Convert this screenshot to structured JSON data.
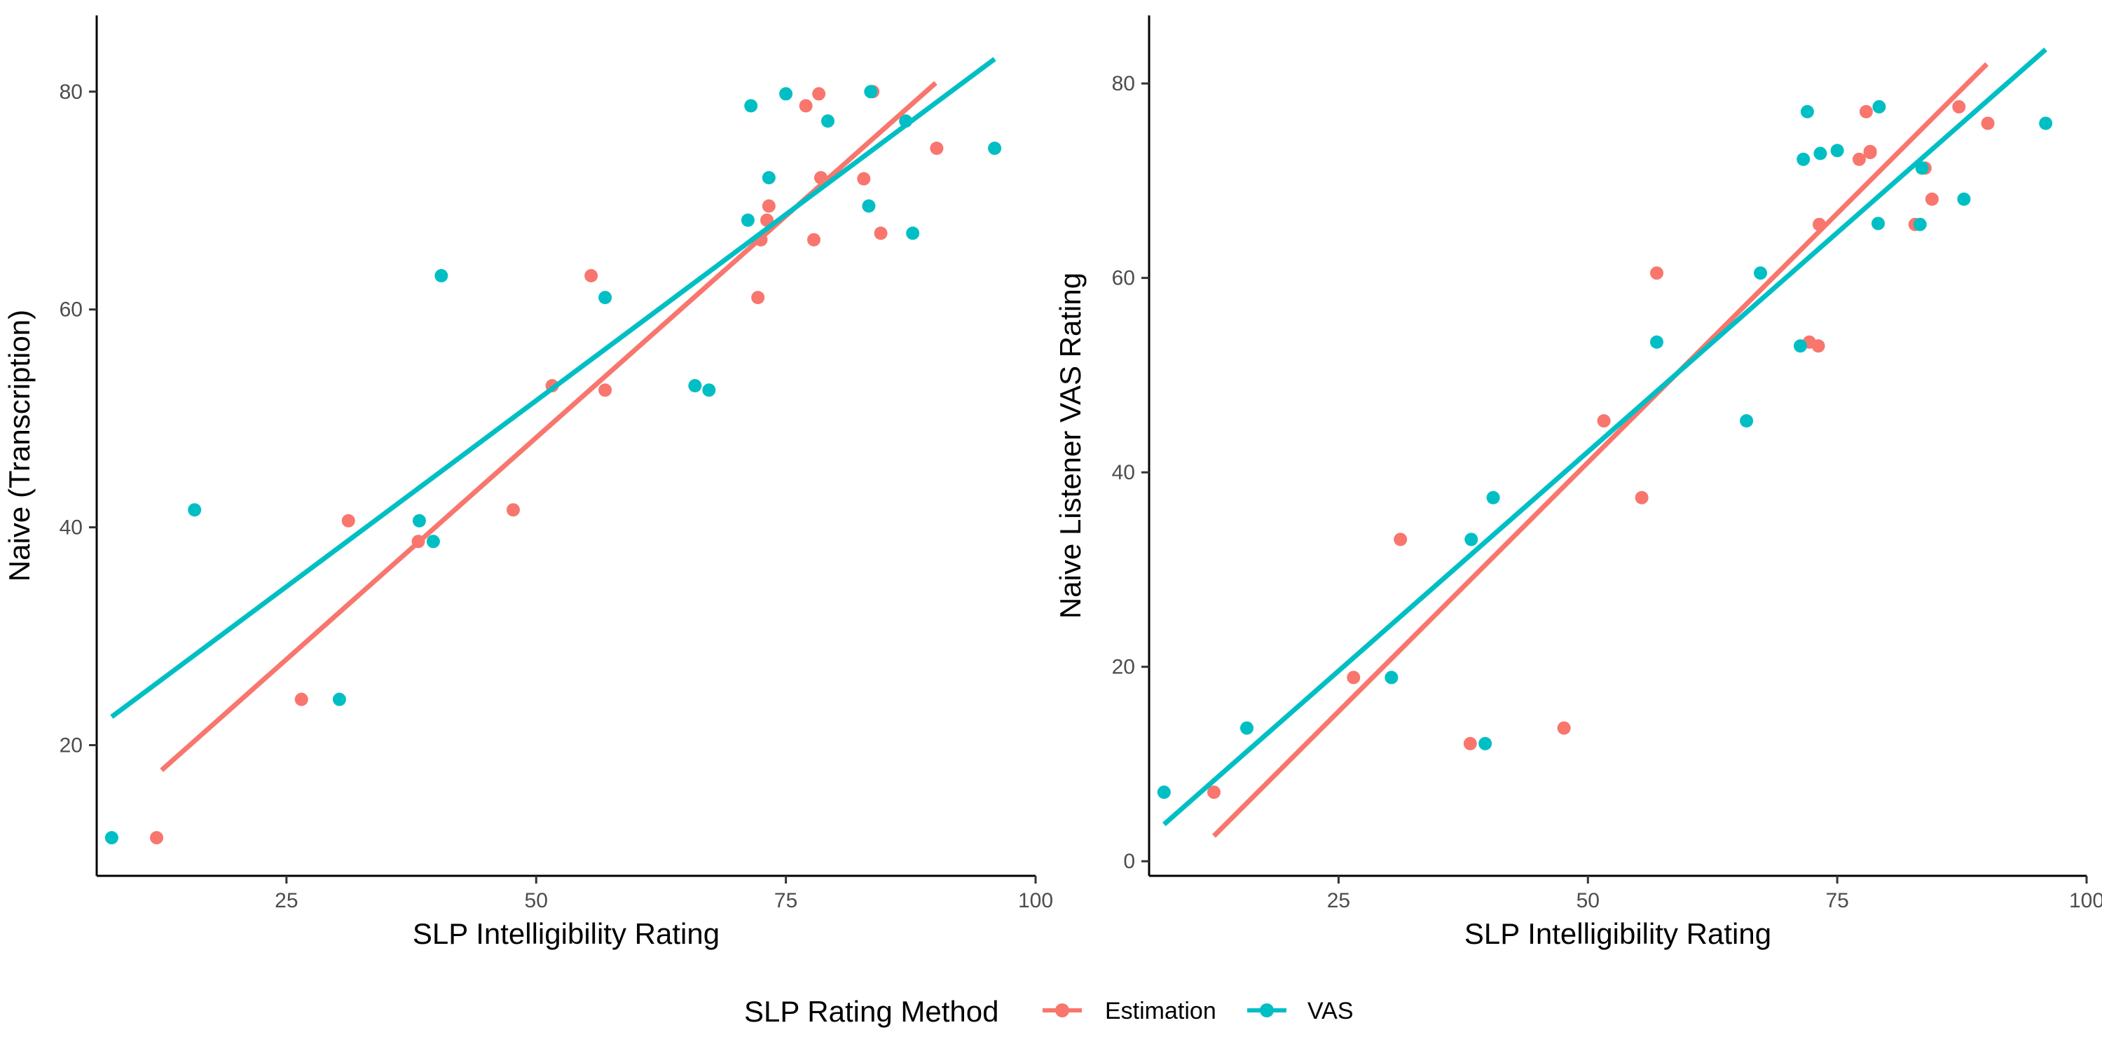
{
  "colors": {
    "estimation": "#F8766D",
    "vas": "#00BFC4",
    "axis": "#000000",
    "tick_text": "#4d4d4d"
  },
  "legend": {
    "title": "SLP Rating Method",
    "items": [
      {
        "label": "Estimation",
        "key": "estimation"
      },
      {
        "label": "VAS",
        "key": "vas"
      }
    ],
    "position": "bottom"
  },
  "chart_data": [
    {
      "type": "scatter",
      "xlabel": "SLP Intelligibility Rating",
      "ylabel": "Naive (Transcription)",
      "xlim": [
        6,
        100
      ],
      "ylim": [
        8,
        87
      ],
      "xticks": [
        25,
        50,
        75,
        100
      ],
      "yticks": [
        20,
        40,
        60,
        80
      ],
      "grid": false,
      "series": [
        {
          "key": "estimation",
          "name": "Estimation",
          "points": [
            [
              12,
              11.5
            ],
            [
              26.5,
              24.2
            ],
            [
              31.2,
              40.6
            ],
            [
              38.2,
              38.7
            ],
            [
              47.7,
              41.6
            ],
            [
              51.6,
              53
            ],
            [
              55.5,
              63.1
            ],
            [
              56.9,
              52.6
            ],
            [
              72.2,
              61.1
            ],
            [
              72.5,
              66.4
            ],
            [
              73.1,
              68.2
            ],
            [
              73.3,
              69.5
            ],
            [
              77,
              78.7
            ],
            [
              77.8,
              66.4
            ],
            [
              78.3,
              79.8
            ],
            [
              78.5,
              72.1
            ],
            [
              82.8,
              72
            ],
            [
              83.7,
              80
            ],
            [
              84.5,
              67
            ],
            [
              90.1,
              74.8
            ]
          ],
          "fit": [
            [
              12.5,
              17.7
            ],
            [
              90,
              80.8
            ]
          ]
        },
        {
          "key": "vas",
          "name": "VAS",
          "points": [
            [
              7.5,
              11.5
            ],
            [
              15.8,
              41.6
            ],
            [
              30.3,
              24.2
            ],
            [
              38.3,
              40.6
            ],
            [
              39.7,
              38.7
            ],
            [
              40.5,
              63.1
            ],
            [
              56.9,
              61.1
            ],
            [
              65.9,
              53
            ],
            [
              67.3,
              52.6
            ],
            [
              71.2,
              68.2
            ],
            [
              71.5,
              78.7
            ],
            [
              73.3,
              72.1
            ],
            [
              75,
              79.8
            ],
            [
              79.2,
              77.3
            ],
            [
              83.3,
              69.5
            ],
            [
              83.5,
              80
            ],
            [
              87,
              77.3
            ],
            [
              87.7,
              67
            ],
            [
              95.9,
              74.8
            ]
          ],
          "fit": [
            [
              7.5,
              22.6
            ],
            [
              95.9,
              83
            ]
          ]
        }
      ]
    },
    {
      "type": "scatter",
      "xlabel": "SLP Intelligibility Rating",
      "ylabel": "Naive Listener VAS Rating",
      "xlim": [
        6,
        100
      ],
      "ylim": [
        -1.5,
        87
      ],
      "xticks": [
        25,
        50,
        75,
        100
      ],
      "yticks": [
        0,
        20,
        40,
        60,
        80
      ],
      "grid": false,
      "series": [
        {
          "key": "estimation",
          "name": "Estimation",
          "points": [
            [
              12.5,
              7.1
            ],
            [
              26.5,
              18.9
            ],
            [
              31.2,
              33.1
            ],
            [
              38.2,
              12.1
            ],
            [
              47.6,
              13.7
            ],
            [
              51.6,
              45.3
            ],
            [
              55.4,
              37.4
            ],
            [
              56.9,
              60.5
            ],
            [
              72.2,
              53.4
            ],
            [
              73.1,
              53
            ],
            [
              73.2,
              65.5
            ],
            [
              77.2,
              72.2
            ],
            [
              77.9,
              77.1
            ],
            [
              78.3,
              73
            ],
            [
              78.3,
              72.9
            ],
            [
              82.8,
              65.5
            ],
            [
              83.8,
              71.3
            ],
            [
              84.5,
              68.1
            ],
            [
              87.2,
              77.6
            ],
            [
              90.1,
              75.9
            ]
          ],
          "fit": [
            [
              12.5,
              2.6
            ],
            [
              90,
              82
            ]
          ]
        },
        {
          "key": "vas",
          "name": "VAS",
          "points": [
            [
              7.5,
              7.1
            ],
            [
              15.8,
              13.7
            ],
            [
              30.3,
              18.9
            ],
            [
              38.3,
              33.1
            ],
            [
              39.7,
              12.1
            ],
            [
              40.5,
              37.4
            ],
            [
              56.9,
              53.4
            ],
            [
              65.9,
              45.3
            ],
            [
              67.3,
              60.5
            ],
            [
              71.3,
              53
            ],
            [
              71.6,
              72.2
            ],
            [
              72,
              77.1
            ],
            [
              73.3,
              72.8
            ],
            [
              75,
              73.1
            ],
            [
              79.2,
              77.6
            ],
            [
              79.1,
              65.6
            ],
            [
              83.3,
              65.5
            ],
            [
              83.5,
              71.3
            ],
            [
              87.7,
              68.1
            ],
            [
              95.9,
              75.9
            ]
          ],
          "fit": [
            [
              7.5,
              3.8
            ],
            [
              95.9,
              83.5
            ]
          ]
        }
      ]
    }
  ]
}
